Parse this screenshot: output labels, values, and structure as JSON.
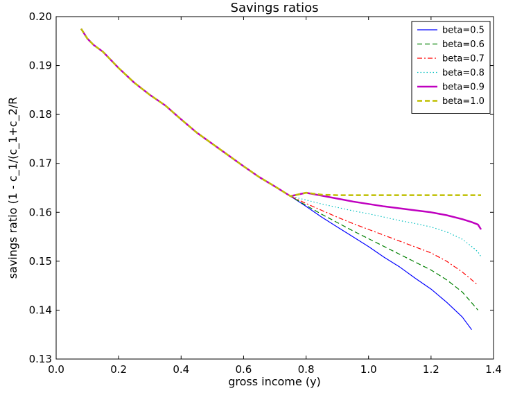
{
  "chart_data": {
    "type": "line",
    "title": "Savings ratios",
    "xlabel": "gross income (y)",
    "ylabel": "savings ratio (1 - c_1/(c_1+c_2/R",
    "xlim": [
      0.0,
      1.4
    ],
    "ylim": [
      0.13,
      0.2
    ],
    "xticks": [
      0.0,
      0.2,
      0.4,
      0.6,
      0.8,
      1.0,
      1.2,
      1.4
    ],
    "xtick_labels": [
      "0.0",
      "0.2",
      "0.4",
      "0.6",
      "0.8",
      "1.0",
      "1.2",
      "1.4"
    ],
    "yticks": [
      0.13,
      0.14,
      0.15,
      0.16,
      0.17,
      0.18,
      0.19,
      0.2
    ],
    "ytick_labels": [
      "0.13",
      "0.14",
      "0.15",
      "0.16",
      "0.17",
      "0.18",
      "0.19",
      "0.20"
    ],
    "grid": false,
    "legend_position": "top-right",
    "x": [
      0.08,
      0.1,
      0.12,
      0.15,
      0.2,
      0.25,
      0.3,
      0.35,
      0.4,
      0.45,
      0.5,
      0.55,
      0.6,
      0.65,
      0.7,
      0.75,
      0.8,
      0.85,
      0.9,
      0.95,
      1.0,
      1.05,
      1.1,
      1.15,
      1.2,
      1.25,
      1.3,
      1.33,
      1.35,
      1.36
    ],
    "series": [
      {
        "name": "beta=0.5",
        "color": "#0000ff",
        "style": "solid",
        "width": 1.2,
        "values": [
          0.1975,
          0.1955,
          0.1942,
          0.1928,
          0.1895,
          0.1865,
          0.184,
          0.1818,
          0.179,
          0.1763,
          0.174,
          0.1717,
          0.1694,
          0.1672,
          0.1653,
          0.1633,
          0.1612,
          0.159,
          0.157,
          0.155,
          0.153,
          0.1508,
          0.1488,
          0.1465,
          0.1443,
          0.1416,
          0.1386,
          0.136,
          null,
          null
        ]
      },
      {
        "name": "beta=0.6",
        "color": "#008000",
        "style": "dash",
        "width": 1.2,
        "values": [
          0.1975,
          0.1955,
          0.1942,
          0.1928,
          0.1895,
          0.1865,
          0.184,
          0.1818,
          0.179,
          0.1763,
          0.174,
          0.1717,
          0.1694,
          0.1672,
          0.1653,
          0.1633,
          0.1614,
          0.1596,
          0.1579,
          0.1562,
          0.1546,
          0.153,
          0.1514,
          0.1498,
          0.1482,
          0.1462,
          0.1437,
          0.1415,
          0.14,
          null
        ]
      },
      {
        "name": "beta=0.7",
        "color": "#ff0000",
        "style": "dashdot",
        "width": 1.2,
        "values": [
          0.1975,
          0.1955,
          0.1942,
          0.1928,
          0.1895,
          0.1865,
          0.184,
          0.1818,
          0.179,
          0.1763,
          0.174,
          0.1717,
          0.1694,
          0.1672,
          0.1653,
          0.1633,
          0.1618,
          0.1604,
          0.159,
          0.1577,
          0.1565,
          0.1553,
          0.1541,
          0.1529,
          0.1517,
          0.15,
          0.1478,
          0.1462,
          0.1451,
          null
        ]
      },
      {
        "name": "beta=0.8",
        "color": "#00bfbf",
        "style": "dot",
        "width": 1.2,
        "values": [
          0.1975,
          0.1955,
          0.1942,
          0.1928,
          0.1895,
          0.1865,
          0.184,
          0.1818,
          0.179,
          0.1763,
          0.174,
          0.1717,
          0.1694,
          0.1672,
          0.1653,
          0.1633,
          0.1625,
          0.1617,
          0.161,
          0.1603,
          0.1597,
          0.159,
          0.1583,
          0.1577,
          0.157,
          0.156,
          0.1545,
          0.153,
          0.1519,
          0.1509
        ]
      },
      {
        "name": "beta=0.9",
        "color": "#bf00bf",
        "style": "solid",
        "width": 2.5,
        "values": [
          0.1975,
          0.1955,
          0.1942,
          0.1928,
          0.1895,
          0.1865,
          0.184,
          0.1818,
          0.179,
          0.1763,
          0.174,
          0.1717,
          0.1694,
          0.1672,
          0.1653,
          0.1633,
          0.164,
          0.1634,
          0.1628,
          0.1622,
          0.1617,
          0.1612,
          0.1608,
          0.1604,
          0.16,
          0.1594,
          0.1586,
          0.158,
          0.1575,
          0.1565
        ]
      },
      {
        "name": "beta=1.0",
        "color": "#bfbf00",
        "style": "dash",
        "width": 2.5,
        "values": [
          0.1975,
          0.1955,
          0.1942,
          0.1928,
          0.1895,
          0.1865,
          0.184,
          0.1818,
          0.179,
          0.1763,
          0.174,
          0.1717,
          0.1694,
          0.1672,
          0.1653,
          0.1633,
          0.164,
          0.1636,
          0.1635,
          0.1635,
          0.1635,
          0.1635,
          0.1635,
          0.1635,
          0.1635,
          0.1635,
          0.1635,
          0.1635,
          0.1635,
          0.1635
        ]
      }
    ]
  }
}
